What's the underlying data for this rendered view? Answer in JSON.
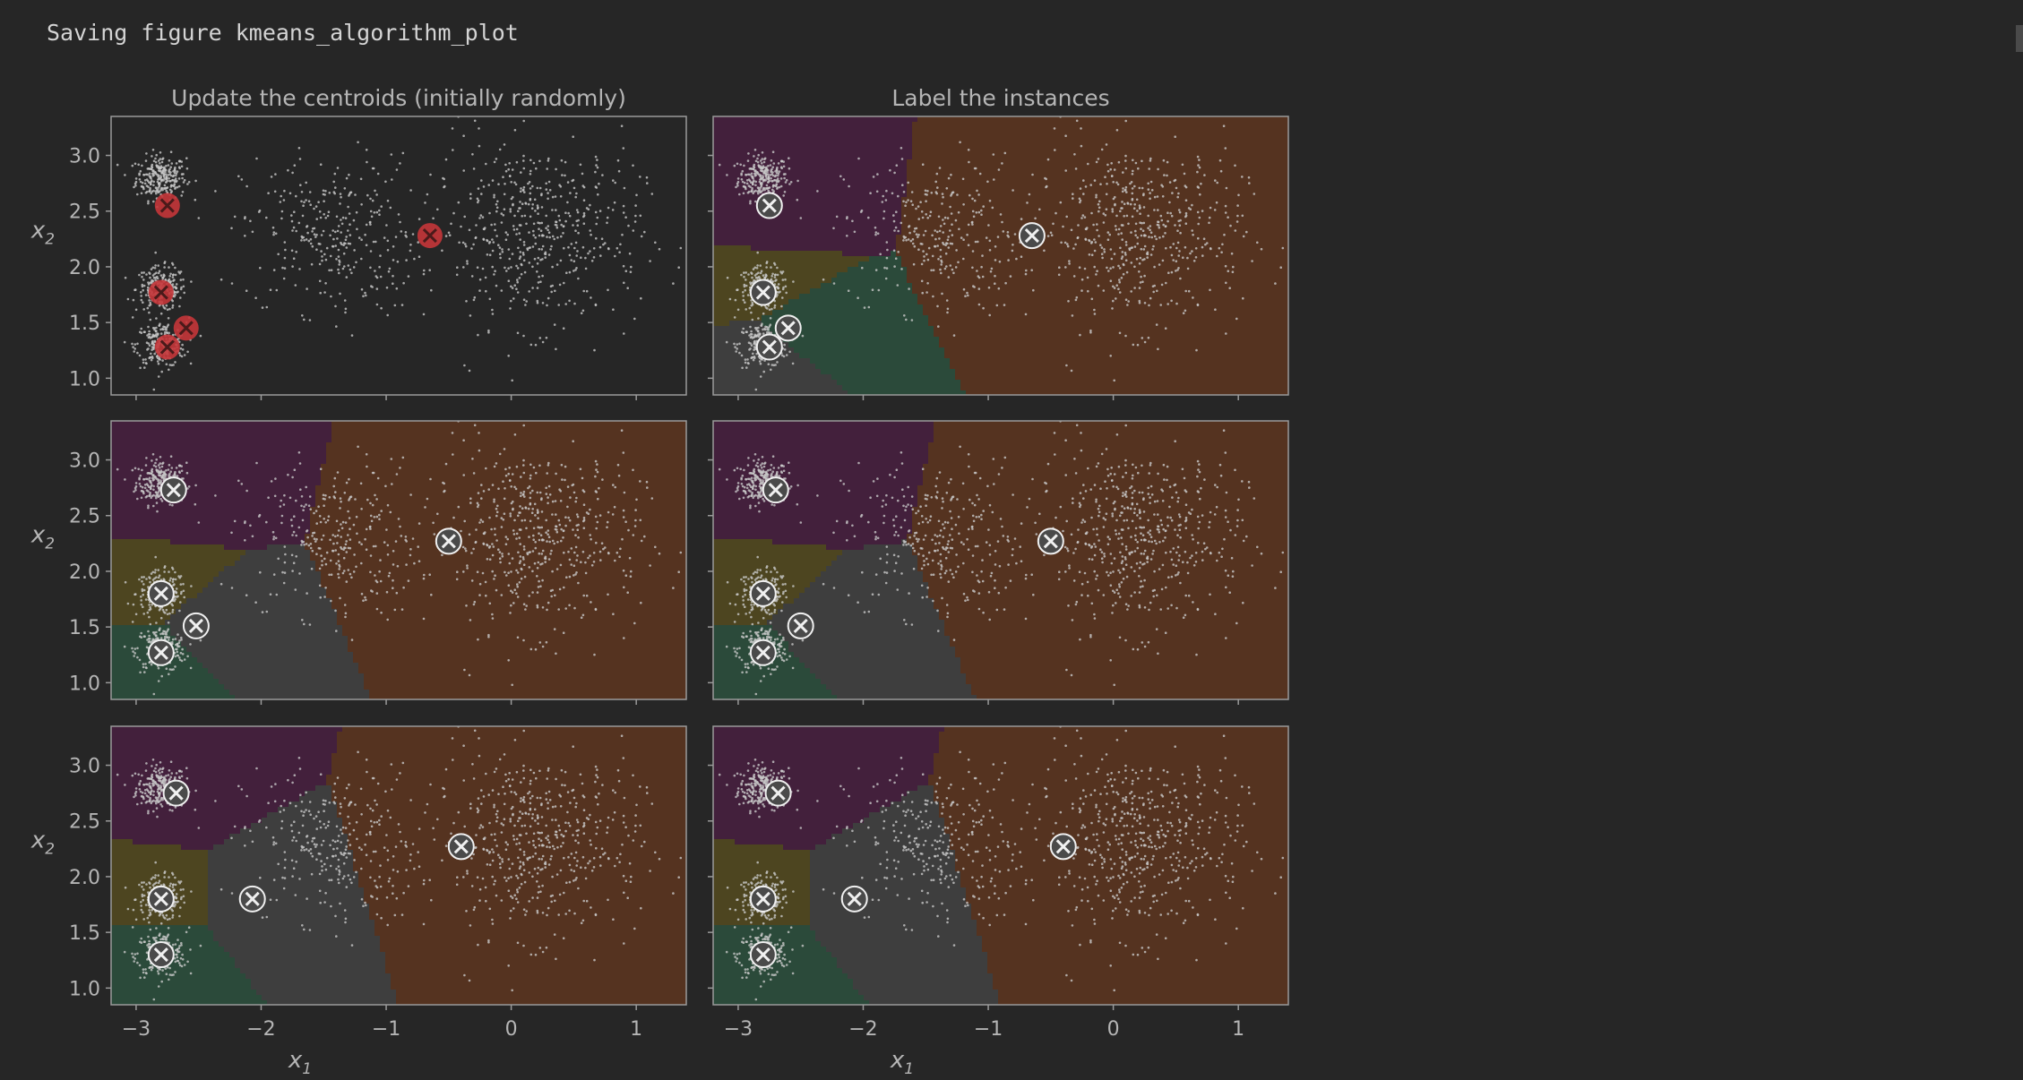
{
  "cell_output": {
    "text": "Saving figure kmeans_algorithm_plot"
  },
  "figure": {
    "columns": [
      {
        "title": "Update the centroids (initially randomly)"
      },
      {
        "title": "Label the instances"
      }
    ],
    "ylabel": "x2",
    "xlabel": "x1",
    "x_ticks": [
      -3,
      -2,
      -1,
      0,
      1
    ],
    "y_ticks": [
      1.0,
      1.5,
      2.0,
      2.5,
      3.0
    ]
  },
  "chart_data": [
    {
      "type": "scatter",
      "subtitle": "Update the centroids (initially randomly)",
      "xlim": [
        -3.2,
        1.4
      ],
      "ylim": [
        0.85,
        3.35
      ],
      "regions": false,
      "centroid_style": "red",
      "centroids": [
        [
          -2.75,
          2.55
        ],
        [
          -2.8,
          1.77
        ],
        [
          -2.6,
          1.45
        ],
        [
          -2.75,
          1.28
        ],
        [
          -0.65,
          2.28
        ]
      ]
    },
    {
      "type": "scatter",
      "subtitle": "Label the instances",
      "xlim": [
        -3.2,
        1.4
      ],
      "ylim": [
        0.85,
        3.35
      ],
      "regions": true,
      "centroid_style": "white",
      "centroids": [
        [
          -2.75,
          2.55
        ],
        [
          -2.8,
          1.77
        ],
        [
          -2.6,
          1.45
        ],
        [
          -2.75,
          1.28
        ],
        [
          -0.65,
          2.28
        ]
      ]
    },
    {
      "type": "scatter",
      "xlim": [
        -3.2,
        1.4
      ],
      "ylim": [
        0.85,
        3.35
      ],
      "regions": true,
      "centroid_style": "white",
      "centroids": [
        [
          -2.7,
          2.73
        ],
        [
          -2.8,
          1.8
        ],
        [
          -2.52,
          1.51
        ],
        [
          -2.8,
          1.27
        ],
        [
          -0.5,
          2.27
        ]
      ]
    },
    {
      "type": "scatter",
      "xlim": [
        -3.2,
        1.4
      ],
      "ylim": [
        0.85,
        3.35
      ],
      "regions": true,
      "centroid_style": "white",
      "centroids": [
        [
          -2.7,
          2.73
        ],
        [
          -2.8,
          1.8
        ],
        [
          -2.5,
          1.51
        ],
        [
          -2.8,
          1.27
        ],
        [
          -0.5,
          2.27
        ]
      ]
    },
    {
      "type": "scatter",
      "xlim": [
        -3.2,
        1.4
      ],
      "ylim": [
        0.85,
        3.35
      ],
      "regions": true,
      "centroid_style": "white",
      "centroids": [
        [
          -2.68,
          2.75
        ],
        [
          -2.8,
          1.8
        ],
        [
          -2.07,
          1.8
        ],
        [
          -2.8,
          1.3
        ],
        [
          -0.4,
          2.27
        ]
      ]
    },
    {
      "type": "scatter",
      "xlim": [
        -3.2,
        1.4
      ],
      "ylim": [
        0.85,
        3.35
      ],
      "regions": true,
      "centroid_style": "white",
      "centroids": [
        [
          -2.68,
          2.75
        ],
        [
          -2.8,
          1.8
        ],
        [
          -2.07,
          1.8
        ],
        [
          -2.8,
          1.3
        ],
        [
          -0.4,
          2.27
        ]
      ]
    }
  ],
  "colors": {
    "background": "#262626",
    "axes_bg": "#262626",
    "spine": "#9a9a9a",
    "text": "#b5b5b5",
    "points": "#c8c8c8",
    "region_purple": "#43203c",
    "region_olive": "#4d4520",
    "region_green": "#2b4a3a",
    "region_gray": "#3e3e3e",
    "region_brown": "#553320",
    "boundary": "#d9d9d9",
    "centroid_red": "#c5363a",
    "centroid_white": "#f0f0f0"
  }
}
